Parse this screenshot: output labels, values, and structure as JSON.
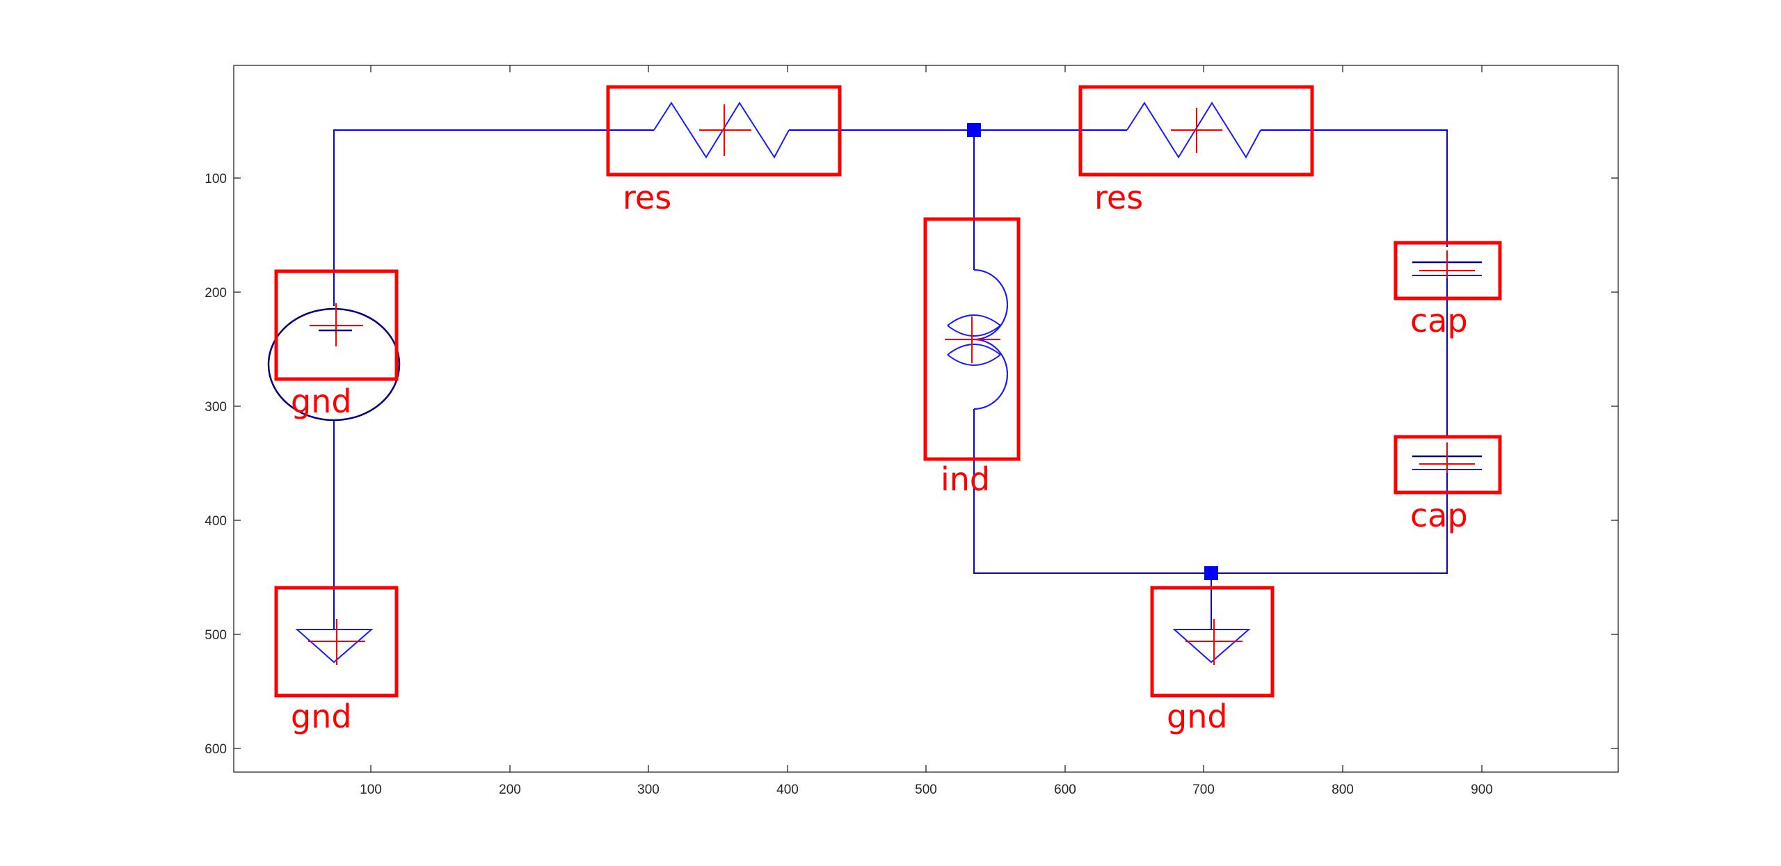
{
  "axes": {
    "x_tick_labels": [
      "100",
      "200",
      "300",
      "400",
      "500",
      "600",
      "700",
      "800",
      "900"
    ],
    "y_tick_labels": [
      "100",
      "200",
      "300",
      "400",
      "500",
      "600"
    ]
  },
  "components": [
    {
      "label": "res"
    },
    {
      "label": "res"
    },
    {
      "label": "gnd"
    },
    {
      "label": "ind"
    },
    {
      "label": "cap"
    },
    {
      "label": "cap"
    },
    {
      "label": "gnd"
    },
    {
      "label": "gnd"
    }
  ],
  "colors": {
    "wire": "#0000ff",
    "box": "#ff0000",
    "junction": "#0000ff"
  }
}
